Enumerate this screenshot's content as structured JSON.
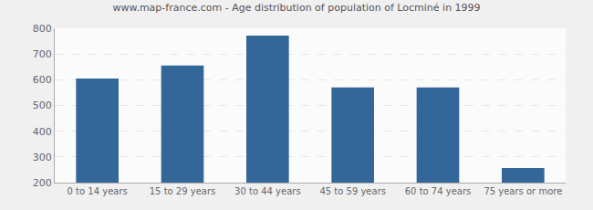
{
  "chart_data": {
    "type": "bar",
    "title": "www.map-france.com - Age distribution of population of Locminé in 1999",
    "categories": [
      "0 to 14 years",
      "15 to 29 years",
      "30 to 44 years",
      "45 to 59 years",
      "60 to 74 years",
      "75 years or more"
    ],
    "values": [
      605,
      655,
      772,
      570,
      570,
      257
    ],
    "color": "#336699",
    "ylim": [
      200,
      800
    ],
    "yticks": [
      200,
      300,
      400,
      500,
      600,
      700,
      800
    ],
    "grid": true
  }
}
